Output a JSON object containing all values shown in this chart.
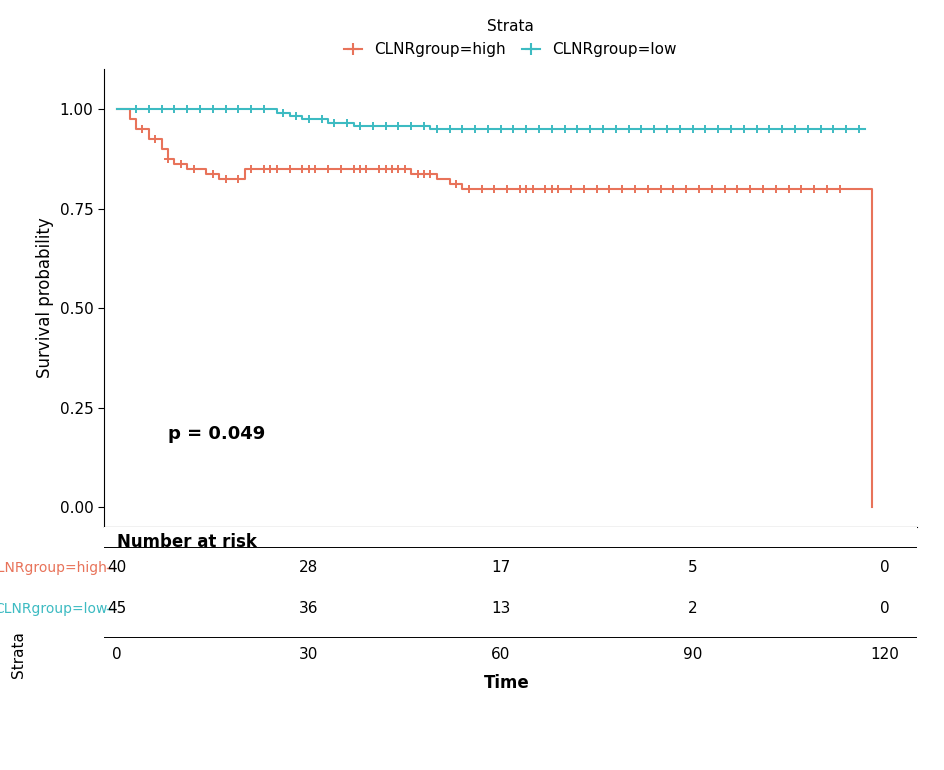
{
  "color_high": "#E8735A",
  "color_low": "#3DBBC2",
  "legend_title": "Strata",
  "legend_high": "CLNRgroup=high",
  "legend_low": "CLNRgroup=low",
  "p_value_text": "p = 0.049",
  "ylabel": "Survival probability",
  "xlabel": "Time",
  "risk_table_title": "Number at risk",
  "risk_times": [
    0,
    30,
    60,
    90,
    120
  ],
  "risk_high": [
    40,
    28,
    17,
    5,
    0
  ],
  "risk_low": [
    45,
    36,
    13,
    2,
    0
  ],
  "strata_label": "Strata",
  "high_times": [
    0,
    2,
    3,
    5,
    7,
    8,
    9,
    11,
    14,
    16,
    20,
    26,
    28,
    32,
    34,
    40,
    46,
    50,
    52,
    54,
    56,
    58,
    60,
    62,
    66,
    70,
    72,
    74,
    76,
    78,
    80,
    82,
    84,
    86,
    88,
    90,
    92,
    94,
    96,
    98,
    100,
    102,
    104,
    106,
    108,
    110,
    112,
    114,
    116,
    118
  ],
  "high_surv": [
    1.0,
    0.975,
    0.95,
    0.925,
    0.9,
    0.875,
    0.862,
    0.85,
    0.838,
    0.825,
    0.85,
    0.85,
    0.85,
    0.85,
    0.85,
    0.85,
    0.838,
    0.825,
    0.812,
    0.8,
    0.8,
    0.8,
    0.8,
    0.8,
    0.8,
    0.8,
    0.8,
    0.8,
    0.8,
    0.8,
    0.8,
    0.8,
    0.8,
    0.8,
    0.8,
    0.8,
    0.8,
    0.8,
    0.8,
    0.8,
    0.8,
    0.8,
    0.8,
    0.8,
    0.8,
    0.8,
    0.8,
    0.8,
    0.8,
    0.0
  ],
  "low_times": [
    0,
    25,
    27,
    29,
    33,
    37,
    43,
    47,
    49,
    51,
    53,
    55,
    57,
    59,
    61,
    65,
    69,
    73,
    77,
    81,
    85,
    89,
    93,
    97,
    101,
    105,
    109,
    113,
    117
  ],
  "low_surv": [
    1.0,
    0.99,
    0.982,
    0.974,
    0.966,
    0.958,
    0.958,
    0.958,
    0.95,
    0.95,
    0.95,
    0.95,
    0.95,
    0.95,
    0.95,
    0.95,
    0.95,
    0.95,
    0.95,
    0.95,
    0.95,
    0.95,
    0.95,
    0.95,
    0.95,
    0.95,
    0.95,
    0.95,
    0.95
  ],
  "high_censor": [
    4,
    6,
    8,
    10,
    12,
    15,
    17,
    19,
    21,
    23,
    24,
    25,
    27,
    29,
    30,
    31,
    33,
    35,
    37,
    38,
    39,
    41,
    42,
    43,
    44,
    45,
    47,
    48,
    49,
    53,
    55,
    57,
    59,
    61,
    63,
    64,
    65,
    67,
    68,
    69,
    71,
    73,
    75,
    77,
    79,
    81,
    83,
    85,
    87,
    89,
    91,
    93,
    95,
    97,
    99,
    101,
    103,
    105,
    107,
    109,
    111,
    113
  ],
  "low_censor": [
    3,
    5,
    7,
    9,
    11,
    13,
    15,
    17,
    19,
    21,
    23,
    26,
    28,
    30,
    32,
    34,
    36,
    38,
    40,
    42,
    44,
    46,
    48,
    50,
    52,
    54,
    56,
    58,
    60,
    62,
    64,
    66,
    68,
    70,
    72,
    74,
    76,
    78,
    80,
    82,
    84,
    86,
    88,
    90,
    92,
    94,
    96,
    98,
    100,
    102,
    104,
    106,
    108,
    110,
    112,
    114,
    116
  ]
}
